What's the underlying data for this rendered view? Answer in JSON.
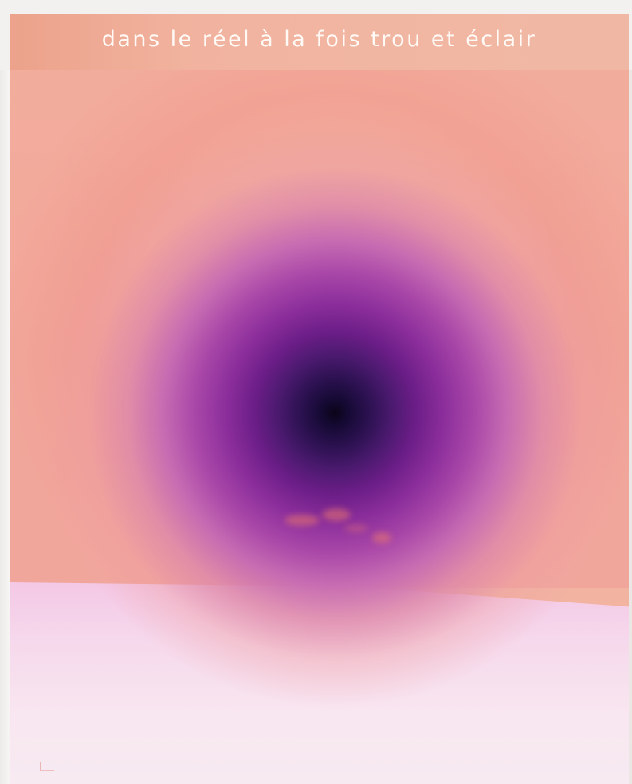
{
  "artwork": {
    "title": "dans le réel à la fois trou et éclair",
    "colors": {
      "background": "#f2b3a1",
      "top_band": "#f1b39f",
      "center": "#0a0418",
      "inner_ring": "#4b1a6f",
      "outer_ring": "#a947a8",
      "lower_field": "#f6d9ec",
      "frame": "#f2f1ef"
    }
  }
}
